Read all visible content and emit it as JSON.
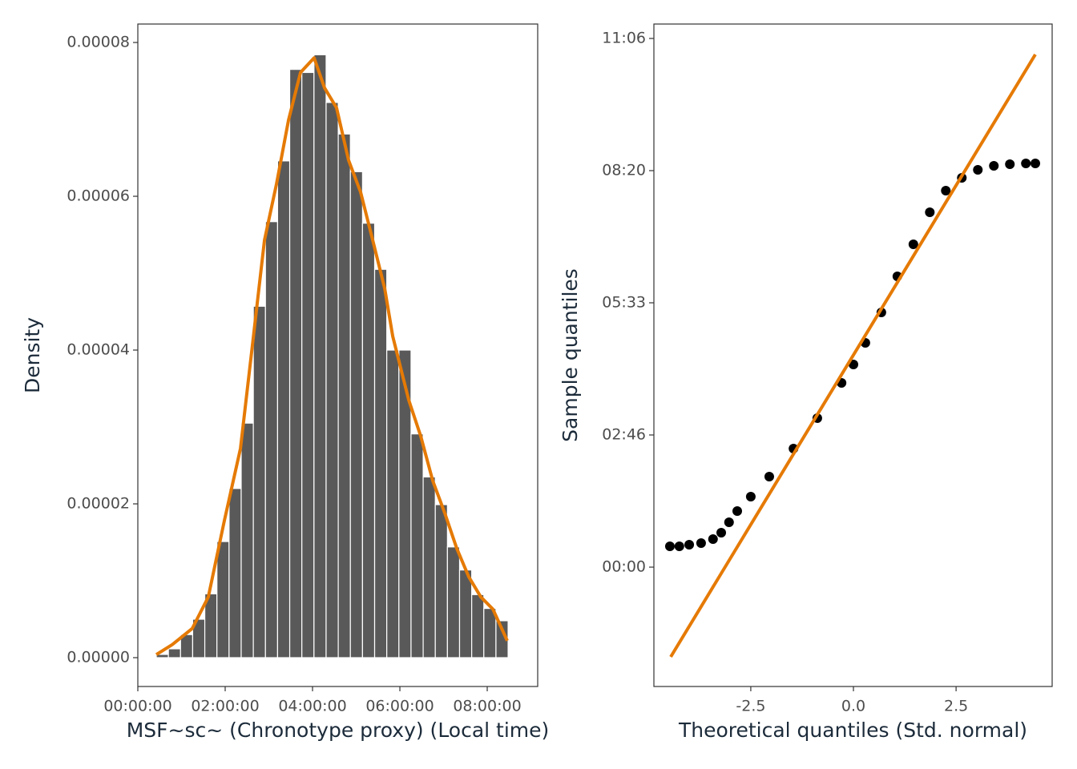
{
  "chart_data": [
    {
      "type": "histogram",
      "x_label": "MSF~sc~ (Chronotype proxy) (Local time)",
      "y_label": "Density",
      "bins": [
        1520,
        2520,
        3520,
        4520,
        5520,
        6520,
        7520,
        8520,
        9520,
        10520,
        11520,
        12520,
        13520,
        14520,
        15520,
        16520,
        17520,
        18520,
        19520,
        20520,
        21520,
        22520,
        23520,
        24520,
        25520,
        26520,
        27520,
        28520,
        29520,
        30520
      ],
      "values": [
        4.2e-07,
        1.15e-06,
        3e-06,
        5e-06,
        8.3e-06,
        1.51e-05,
        2.2e-05,
        3.05e-05,
        4.57e-05,
        5.67e-05,
        6.46e-05,
        7.65e-05,
        7.61e-05,
        7.84e-05,
        7.22e-05,
        6.81e-05,
        6.32e-05,
        5.65e-05,
        5.05e-05,
        4e-05,
        4e-05,
        2.91e-05,
        2.35e-05,
        1.99e-05,
        1.44e-05,
        1.14e-05,
        8.2e-06,
        6.4e-06,
        4.8e-06
      ],
      "color": "#595959",
      "density_curve": {
        "color": "#e57a05",
        "x": [
          1520,
          2840,
          4490,
          5810,
          7130,
          8460,
          9450,
          10440,
          11430,
          12420,
          13410,
          14530,
          15390,
          16380,
          17370,
          18370,
          19360,
          20350,
          21010,
          22330,
          23320,
          24310,
          25300,
          26290,
          27280,
          28270,
          29270,
          30450
        ],
        "y": [
          4e-07,
          1.7e-06,
          3.8e-06,
          7.9e-06,
          1.78e-05,
          2.72e-05,
          4.07e-05,
          5.43e-05,
          6.16e-05,
          6.99e-05,
          7.61e-05,
          7.8e-05,
          7.41e-05,
          7.15e-05,
          6.47e-05,
          6.05e-05,
          5.43e-05,
          4.8e-05,
          4.18e-05,
          3.35e-05,
          2.88e-05,
          2.3e-05,
          1.88e-05,
          1.42e-05,
          1.05e-05,
          7.9e-06,
          6.3e-06,
          2.2e-06
        ]
      },
      "xlim": [
        0,
        32960
      ],
      "ylim": [
        -3.75e-06,
        8.24e-05
      ],
      "xticks": [
        {
          "value": 0,
          "label": "00:00:00"
        },
        {
          "value": 7200,
          "label": "02:00:00"
        },
        {
          "value": 14400,
          "label": "04:00:00"
        },
        {
          "value": 21600,
          "label": "06:00:00"
        },
        {
          "value": 28800,
          "label": "08:00:00"
        }
      ],
      "yticks": [
        {
          "value": 0,
          "label": "0.00000"
        },
        {
          "value": 2e-05,
          "label": "0.00002"
        },
        {
          "value": 4e-05,
          "label": "0.00004"
        },
        {
          "value": 6e-05,
          "label": "0.00006"
        },
        {
          "value": 8e-05,
          "label": "0.00008"
        }
      ]
    },
    {
      "type": "qq",
      "x_label": "Theoretical quantiles (Std. normal)",
      "y_label": "Sample quantiles",
      "color": "#000000",
      "x": [
        -4.47,
        -4.24,
        -4.0,
        -3.71,
        -3.42,
        -3.22,
        -3.03,
        -2.83,
        -2.5,
        -2.05,
        -1.46,
        -0.88,
        -0.29,
        0,
        0.29,
        0.68,
        1.07,
        1.46,
        1.86,
        2.25,
        2.64,
        3.03,
        3.42,
        3.81,
        4.2,
        4.43
      ],
      "y": [
        1576,
        1576,
        1697,
        1818,
        2121,
        2606,
        3394,
        4242,
        5333,
        6848,
        8970,
        11273,
        13939,
        15333,
        16970,
        19273,
        22000,
        24424,
        26848,
        28485,
        29455,
        30061,
        30364,
        30485,
        30545,
        30545
      ],
      "reference_line": {
        "color": "#e57a05",
        "x": [
          -4.45,
          4.43
        ],
        "y": [
          -6788,
          38788
        ]
      },
      "xlim": [
        -4.86,
        4.84
      ],
      "ylim": [
        -9030,
        41091
      ],
      "xticks": [
        -2.5,
        {
          "value": 0,
          "label": "0.0"
        },
        2.5
      ],
      "yticks": [
        {
          "value": 0,
          "label": "00:00"
        },
        {
          "value": 10000,
          "label": "02:46"
        },
        {
          "value": 20000,
          "label": "05:33"
        },
        {
          "value": 30000,
          "label": "08:20"
        },
        {
          "value": 40000,
          "label": "11:06"
        }
      ]
    }
  ]
}
